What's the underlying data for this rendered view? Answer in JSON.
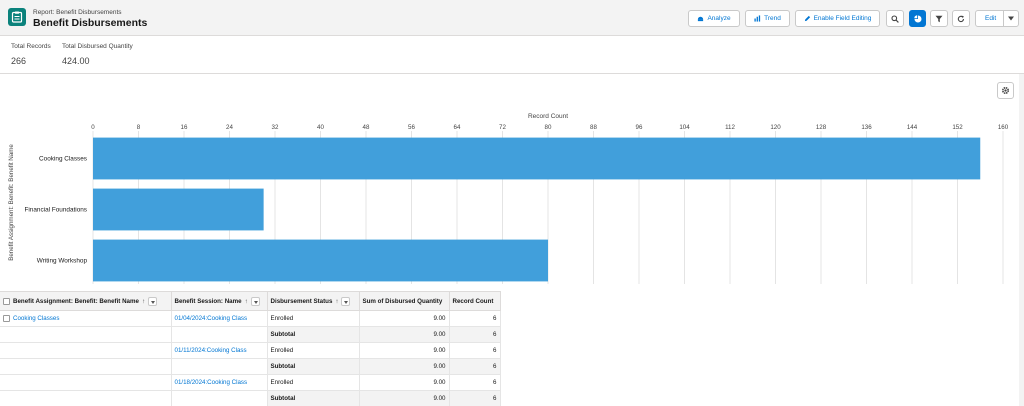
{
  "header": {
    "breadcrumb": "Report: Benefit Disbursements",
    "title": "Benefit Disbursements",
    "buttons": {
      "analyze": "Analyze",
      "trend": "Trend",
      "enable_field_editing": "Enable Field Editing",
      "edit": "Edit"
    }
  },
  "summary": {
    "total_records_label": "Total Records",
    "total_records_value": "266",
    "total_disbursed_label": "Total Disbursed Quantity",
    "total_disbursed_value": "424.00"
  },
  "chart_data": {
    "type": "bar",
    "orientation": "horizontal",
    "xlabel": "Record Count",
    "ylabel": "Benefit Assignment: Benefit: Benefit Name",
    "xlim": [
      0,
      160
    ],
    "ticks": [
      0,
      8,
      16,
      24,
      32,
      40,
      48,
      56,
      64,
      72,
      80,
      88,
      96,
      104,
      112,
      120,
      128,
      136,
      144,
      152,
      160
    ],
    "categories": [
      "Cooking Classes",
      "Financial Foundations",
      "Writing Workshop"
    ],
    "values": [
      156,
      30,
      80
    ],
    "grid": true,
    "bar_color": "#419fdb"
  },
  "table": {
    "columns": {
      "benefit_name": "Benefit Assignment: Benefit: Benefit Name",
      "session_name": "Benefit Session: Name",
      "status": "Disbursement Status",
      "sum_quantity": "Sum of Disbursed Quantity",
      "record_count": "Record Count"
    },
    "sort_glyph": "↑",
    "group_name": "Cooking Classes",
    "rows": [
      {
        "session": "01/04/2024:Cooking Class",
        "status": "Enrolled",
        "sum": "9.00",
        "count": "6",
        "subtotal_label": "Subtotal",
        "subtotal_sum": "9.00",
        "subtotal_count": "6"
      },
      {
        "session": "01/11/2024:Cooking Class",
        "status": "Enrolled",
        "sum": "9.00",
        "count": "6",
        "subtotal_label": "Subtotal",
        "subtotal_sum": "9.00",
        "subtotal_count": "6"
      },
      {
        "session": "01/18/2024:Cooking Class",
        "status": "Enrolled",
        "sum": "9.00",
        "count": "6",
        "subtotal_label": "Subtotal",
        "subtotal_sum": "9.00",
        "subtotal_count": "6"
      }
    ]
  }
}
